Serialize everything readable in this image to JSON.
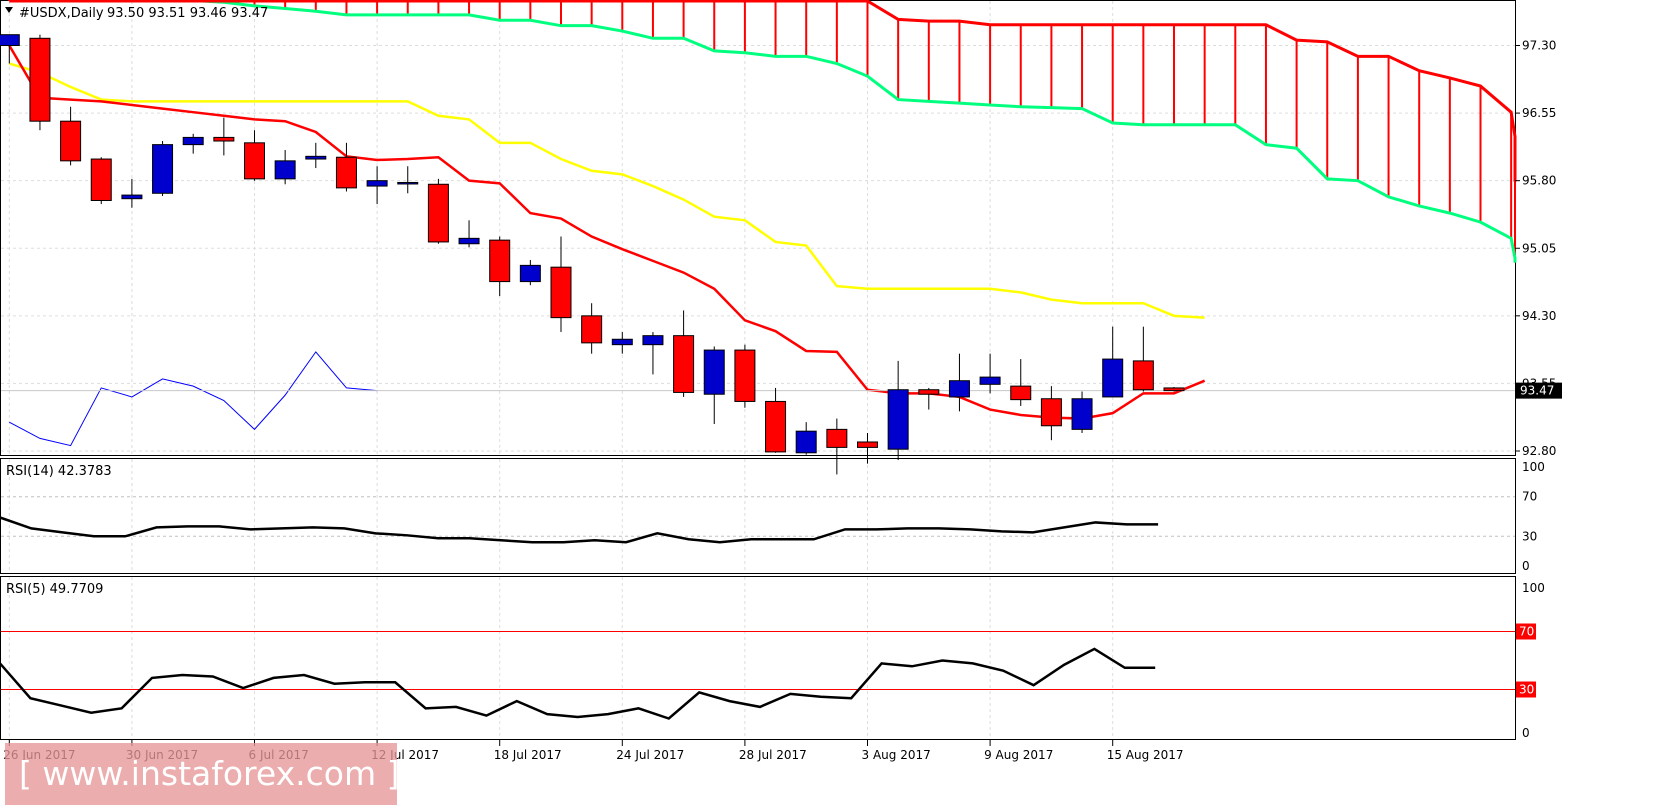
{
  "header": {
    "symbol": "#USDX,Daily",
    "ohlc": "93.50 93.51 93.46 93.47"
  },
  "watermark": "[ www.instaforex.com ]",
  "colors": {
    "bull_candle": "#0000cc",
    "bear_candle": "#ff0000",
    "tenkan": "#ff0000",
    "kijun": "#ffff00",
    "cloud_span_a": "#00ff7f",
    "cloud_span_b": "#ff0000",
    "chikou": "#0000ff",
    "rsi_line": "#000000",
    "rsi_levels": "#ff0000",
    "price_tag_bg": "#000000"
  },
  "chart_data": [
    {
      "type": "candlestick",
      "panel": "main",
      "title": "#USDX,Daily",
      "ylim": [
        92.45,
        97.65
      ],
      "y_ticks": [
        "97.30",
        "96.55",
        "95.80",
        "95.05",
        "94.30",
        "93.55",
        "92.80"
      ],
      "x_tick_labels": [
        "26 Jun 2017",
        "30 Jun 2017",
        "6 Jul 2017",
        "12 Jul 2017",
        "18 Jul 2017",
        "24 Jul 2017",
        "28 Jul 2017",
        "3 Aug 2017",
        "9 Aug 2017",
        "15 Aug 2017"
      ],
      "last_price": "93.47",
      "candles": [
        {
          "o": 97.3,
          "h": 97.42,
          "l": 97.1,
          "c": 97.42
        },
        {
          "o": 97.38,
          "h": 97.42,
          "l": 96.36,
          "c": 96.46
        },
        {
          "o": 96.46,
          "h": 96.62,
          "l": 95.97,
          "c": 96.02
        },
        {
          "o": 96.04,
          "h": 96.06,
          "l": 95.54,
          "c": 95.58
        },
        {
          "o": 95.6,
          "h": 95.82,
          "l": 95.5,
          "c": 95.64
        },
        {
          "o": 95.66,
          "h": 96.24,
          "l": 95.63,
          "c": 96.2
        },
        {
          "o": 96.2,
          "h": 96.32,
          "l": 96.1,
          "c": 96.28
        },
        {
          "o": 96.28,
          "h": 96.5,
          "l": 96.08,
          "c": 96.24
        },
        {
          "o": 96.22,
          "h": 96.36,
          "l": 95.8,
          "c": 95.82
        },
        {
          "o": 95.82,
          "h": 96.14,
          "l": 95.76,
          "c": 96.02
        },
        {
          "o": 96.04,
          "h": 96.22,
          "l": 95.94,
          "c": 96.07
        },
        {
          "o": 96.06,
          "h": 96.22,
          "l": 95.68,
          "c": 95.72
        },
        {
          "o": 95.74,
          "h": 95.96,
          "l": 95.54,
          "c": 95.8
        },
        {
          "o": 95.78,
          "h": 95.96,
          "l": 95.66,
          "c": 95.78
        },
        {
          "o": 95.76,
          "h": 95.82,
          "l": 95.1,
          "c": 95.12
        },
        {
          "o": 95.1,
          "h": 95.36,
          "l": 95.06,
          "c": 95.16
        },
        {
          "o": 95.14,
          "h": 95.18,
          "l": 94.52,
          "c": 94.68
        },
        {
          "o": 94.68,
          "h": 94.92,
          "l": 94.64,
          "c": 94.86
        },
        {
          "o": 94.84,
          "h": 95.18,
          "l": 94.12,
          "c": 94.28
        },
        {
          "o": 94.3,
          "h": 94.44,
          "l": 93.88,
          "c": 94.0
        },
        {
          "o": 93.98,
          "h": 94.12,
          "l": 93.88,
          "c": 94.04
        },
        {
          "o": 93.98,
          "h": 94.12,
          "l": 93.65,
          "c": 94.08
        },
        {
          "o": 94.08,
          "h": 94.36,
          "l": 93.4,
          "c": 93.45
        },
        {
          "o": 93.43,
          "h": 93.96,
          "l": 93.1,
          "c": 93.92
        },
        {
          "o": 93.92,
          "h": 93.98,
          "l": 93.28,
          "c": 93.35
        },
        {
          "o": 93.35,
          "h": 93.5,
          "l": 92.78,
          "c": 92.79
        },
        {
          "o": 92.78,
          "h": 93.12,
          "l": 92.76,
          "c": 93.02
        },
        {
          "o": 93.04,
          "h": 93.16,
          "l": 92.54,
          "c": 92.84
        },
        {
          "o": 92.9,
          "h": 93.0,
          "l": 92.66,
          "c": 92.84
        },
        {
          "o": 92.82,
          "h": 93.8,
          "l": 92.7,
          "c": 93.48
        },
        {
          "o": 93.48,
          "h": 93.5,
          "l": 93.26,
          "c": 93.43
        },
        {
          "o": 93.4,
          "h": 93.88,
          "l": 93.24,
          "c": 93.58
        },
        {
          "o": 93.54,
          "h": 93.88,
          "l": 93.44,
          "c": 93.62
        },
        {
          "o": 93.52,
          "h": 93.82,
          "l": 93.3,
          "c": 93.37
        },
        {
          "o": 93.38,
          "h": 93.52,
          "l": 92.92,
          "c": 93.08
        },
        {
          "o": 93.04,
          "h": 93.46,
          "l": 93.0,
          "c": 93.38
        },
        {
          "o": 93.4,
          "h": 94.18,
          "l": 93.4,
          "c": 93.82
        },
        {
          "o": 93.8,
          "h": 94.18,
          "l": 93.46,
          "c": 93.48
        },
        {
          "o": 93.5,
          "h": 93.51,
          "l": 93.46,
          "c": 93.47
        }
      ],
      "tenkan": [
        97.3,
        96.72,
        96.7,
        96.68,
        96.64,
        96.6,
        96.56,
        96.52,
        96.48,
        96.46,
        96.34,
        96.07,
        96.03,
        96.04,
        96.06,
        95.8,
        95.77,
        95.44,
        95.38,
        95.18,
        95.04,
        94.91,
        94.78,
        94.6,
        94.25,
        94.13,
        93.91,
        93.9,
        93.48,
        93.44,
        93.44,
        93.4,
        93.26,
        93.2,
        93.17,
        93.16,
        93.22,
        93.44,
        93.44,
        93.58
      ],
      "kijun": [
        97.1,
        97.0,
        96.84,
        96.7,
        96.68,
        96.68,
        96.68,
        96.68,
        96.68,
        96.68,
        96.68,
        96.68,
        96.68,
        96.68,
        96.52,
        96.48,
        96.22,
        96.22,
        96.04,
        95.91,
        95.87,
        95.74,
        95.59,
        95.4,
        95.36,
        95.12,
        95.08,
        94.63,
        94.6,
        94.6,
        94.6,
        94.6,
        94.6,
        94.56,
        94.48,
        94.44,
        94.44,
        94.44,
        94.3,
        94.28
      ],
      "span_a": [
        97.92,
        97.9,
        97.88,
        97.86,
        97.84,
        97.82,
        97.8,
        97.78,
        97.74,
        97.71,
        97.68,
        97.64,
        97.64,
        97.64,
        97.64,
        97.64,
        97.58,
        97.58,
        97.52,
        97.52,
        97.46,
        97.38,
        97.38,
        97.24,
        97.22,
        97.18,
        97.18,
        97.1,
        96.96,
        96.7,
        96.68,
        96.66,
        96.64,
        96.62,
        96.61,
        96.6,
        96.44,
        96.42,
        96.42,
        96.42,
        96.42,
        96.2,
        96.16,
        95.82,
        95.8,
        95.62,
        95.52,
        95.44,
        95.34,
        95.16,
        94.94,
        94.89
      ],
      "span_b": [
        98.2,
        98.2,
        98.2,
        98.2,
        98.2,
        98.2,
        98.2,
        98.2,
        98.2,
        98.2,
        98.2,
        98.2,
        98.2,
        98.2,
        98.2,
        98.2,
        98.2,
        98.2,
        98.2,
        98.2,
        98.2,
        98.2,
        98.2,
        98.2,
        98.2,
        98.2,
        98.2,
        98.2,
        98.2,
        97.59,
        97.57,
        97.57,
        97.53,
        97.53,
        97.53,
        97.53,
        97.53,
        97.53,
        97.53,
        97.53,
        97.53,
        97.53,
        97.36,
        97.34,
        97.18,
        97.18,
        97.02,
        96.94,
        96.85,
        96.56,
        96.29,
        95.85,
        95.79
      ],
      "chikou": [
        93.12,
        92.94,
        92.86,
        93.5,
        93.4,
        93.6,
        93.52,
        93.36,
        93.04,
        93.42,
        93.9,
        93.5,
        93.47
      ]
    },
    {
      "type": "line",
      "panel": "rsi14",
      "title": "RSI(14) 42.3783",
      "ylim": [
        0,
        100
      ],
      "y_ticks": [
        "100",
        "70",
        "30",
        "0"
      ],
      "levels": [
        70,
        30
      ],
      "values": [
        49,
        38,
        34,
        30,
        30,
        39,
        40,
        40,
        37,
        38,
        39,
        38,
        33,
        31,
        28,
        28,
        26,
        24,
        24,
        26,
        24,
        33,
        27,
        24,
        27,
        27,
        27,
        37,
        37,
        38,
        38,
        37,
        35,
        34,
        39,
        44,
        42,
        42
      ]
    },
    {
      "type": "line",
      "panel": "rsi5",
      "title": "RSI(5) 49.7709",
      "ylim": [
        0,
        100
      ],
      "y_ticks": [
        "100",
        "70",
        "30",
        "0"
      ],
      "levels": [
        70,
        30
      ],
      "level_labels": [
        "70",
        "30"
      ],
      "values": [
        48,
        24,
        19,
        14,
        17,
        38,
        40,
        39,
        31,
        38,
        40,
        34,
        35,
        35,
        17,
        18,
        12,
        22,
        13,
        11,
        13,
        17,
        10,
        28,
        22,
        18,
        27,
        25,
        24,
        48,
        46,
        50,
        48,
        43,
        33,
        47,
        58,
        45,
        45
      ]
    }
  ]
}
